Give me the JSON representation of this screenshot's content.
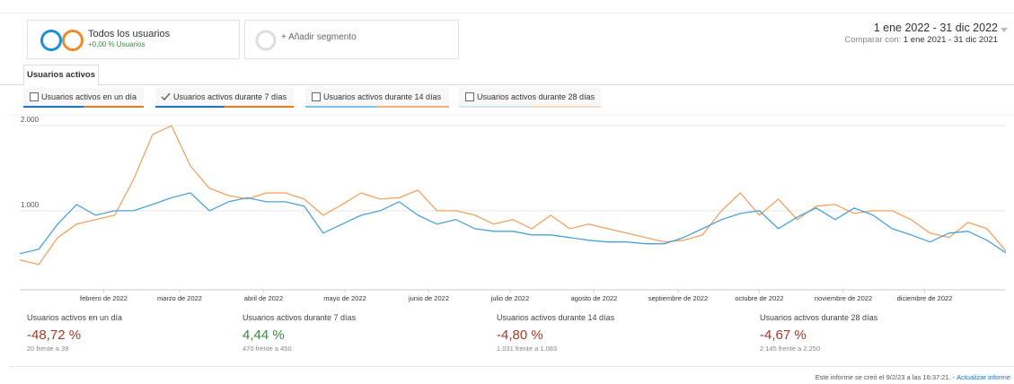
{
  "segments": [
    {
      "name": "Todos los usuarios",
      "detail": "+0,00 % Usuarios"
    },
    {
      "name": "+ Añadir segmento"
    }
  ],
  "date_range": {
    "compare_label": "Comparar con:"
  },
  "tab": "Usuarios activos",
  "metrics": [
    {
      "label": "Usuarios activos en un día",
      "checked": false
    },
    {
      "label": "Usuarios activos durante 7 días",
      "checked": true
    },
    {
      "label": "Usuarios activos durante 14 días",
      "checked": false
    },
    {
      "label": "Usuarios activos durante 28 días",
      "checked": false
    }
  ],
  "chart_data": {
    "type": "line",
    "x": [
      0,
      7,
      14,
      21,
      28,
      35,
      42,
      49,
      56,
      63,
      70,
      77,
      84,
      91,
      98,
      105,
      112,
      119,
      126,
      133,
      140,
      147,
      154,
      161,
      168,
      175,
      182,
      189,
      196,
      203,
      210,
      217,
      224,
      231,
      238,
      245,
      252,
      259,
      266,
      273,
      280,
      287,
      294,
      301,
      308,
      315,
      322,
      329,
      336,
      343,
      350,
      357,
      364
    ],
    "xlim": [
      0,
      364
    ],
    "xticks": [
      {
        "value": 31,
        "label": "febrero de 2022"
      },
      {
        "value": 59,
        "label": "marzo de 2022"
      },
      {
        "value": 90,
        "label": "abril de 2022"
      },
      {
        "value": 120,
        "label": "mayo de 2022"
      },
      {
        "value": 151,
        "label": "junio de 2022"
      },
      {
        "value": 181,
        "label": "julio de 2022"
      },
      {
        "value": 212,
        "label": "agosto de 2022"
      },
      {
        "value": 243,
        "label": "septiembre de 2022"
      },
      {
        "value": 273,
        "label": "octubre de 2022"
      },
      {
        "value": 304,
        "label": "noviembre de 2022"
      },
      {
        "value": 334,
        "label": "diciembre de 2022"
      }
    ],
    "ylim": [
      70,
      2075
    ],
    "yticks": [
      {
        "value": 1000,
        "label": "1.000"
      },
      {
        "value": 2000,
        "label": "2.000"
      }
    ],
    "grid": true,
    "series": [
      {
        "name": "1 ene 2022 - 31 dic 2022",
        "color": "#4aa3d8",
        "values": [
          495,
          547,
          842,
          1074,
          947,
          1000,
          1000,
          1074,
          1153,
          1210,
          1000,
          1105,
          1153,
          1105,
          1105,
          1053,
          737,
          842,
          947,
          1000,
          1105,
          947,
          842,
          895,
          789,
          758,
          758,
          716,
          716,
          684,
          653,
          632,
          632,
          611,
          611,
          684,
          789,
          895,
          968,
          1000,
          789,
          926,
          1032,
          895,
          1032,
          947,
          789,
          716,
          632,
          737,
          758,
          653,
          505
        ]
      },
      {
        "name": "1 ene 2021 - 31 dic 2021",
        "color": "#f0a35e",
        "values": [
          421,
          368,
          684,
          842,
          895,
          947,
          1368,
          1895,
          2000,
          1526,
          1263,
          1179,
          1137,
          1210,
          1210,
          1137,
          947,
          1074,
          1210,
          1137,
          1153,
          1242,
          1000,
          1000,
          947,
          842,
          895,
          789,
          947,
          789,
          842,
          789,
          737,
          684,
          632,
          653,
          716,
          1000,
          1210,
          947,
          1137,
          895,
          1053,
          1074,
          968,
          1000,
          1000,
          895,
          737,
          684,
          863,
          789,
          526
        ]
      }
    ]
  },
  "summary": [
    {
      "label": "Usuarios activos en un día",
      "value": "-48,72 %",
      "detail": "20 frente a 39",
      "color": "#a33a2a"
    },
    {
      "label": "Usuarios activos durante 7 días",
      "value": "4,44 %",
      "detail": "470 frente a 450",
      "color": "#3b8a3e"
    },
    {
      "label": "Usuarios activos durante 14 días",
      "value": "-4,80 %",
      "detail": "1.031 frente a 1.083",
      "color": "#a33a2a"
    },
    {
      "label": "Usuarios activos durante 28 días",
      "value": "-4,67 %",
      "detail": "2.145 frente a 2.250",
      "color": "#a33a2a"
    }
  ],
  "footer": {
    "text": "Este informe se creó el 9/2/23 a las 16:37:21. -",
    "link": "Actualizar informe"
  }
}
